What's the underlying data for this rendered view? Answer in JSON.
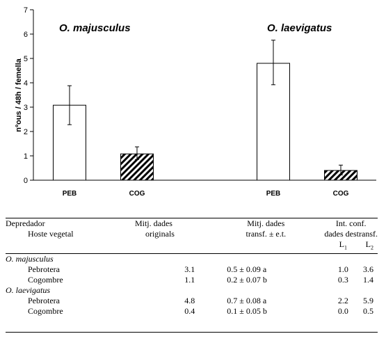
{
  "chart_data": {
    "type": "bar",
    "ylabel": "nºous / 48h / femella",
    "ylim": [
      0,
      7
    ],
    "yticks": [
      0,
      1,
      2,
      3,
      4,
      5,
      6,
      7
    ],
    "groups": [
      {
        "title": "O. majusculus",
        "bars": [
          {
            "category": "PEB",
            "value": 3.08,
            "err_low": 2.28,
            "err_high": 3.88,
            "pattern": "white"
          },
          {
            "category": "COG",
            "value": 1.08,
            "err_low": 0.85,
            "err_high": 1.37,
            "pattern": "hatched"
          }
        ]
      },
      {
        "title": "O. laevigatus",
        "bars": [
          {
            "category": "PEB",
            "value": 4.8,
            "err_low": 3.92,
            "err_high": 5.75,
            "pattern": "white"
          },
          {
            "category": "COG",
            "value": 0.4,
            "err_low": 0.22,
            "err_high": 0.62,
            "pattern": "hatched"
          }
        ]
      }
    ]
  },
  "table": {
    "header": {
      "col1_line1": "Depredador",
      "col1_line2": "Hoste vegetal",
      "col2_line1": "Mitj. dades",
      "col2_line2": "originals",
      "col3_line1": "Mitj. dades",
      "col3_line2": "transf. ± e.t.",
      "col4_line1": "Int. conf.",
      "col4_line2": "dades destransf.",
      "l1_base": "L",
      "l1_sub": "1",
      "l2_base": "L",
      "l2_sub": "2"
    },
    "groups": [
      {
        "species": "O. majusculus",
        "rows": [
          {
            "host": "Pebrotera",
            "orig": "3.1",
            "trans": "0.5 ± 0.09 a",
            "l1": "1.0",
            "l2": "3.6"
          },
          {
            "host": "Cogombre",
            "orig": "1.1",
            "trans": "0.2 ± 0.07 b",
            "l1": "0.3",
            "l2": "1.4"
          }
        ]
      },
      {
        "species": "O. laevigatus",
        "rows": [
          {
            "host": "Pebrotera",
            "orig": "4.8",
            "trans": "0.7 ± 0.08 a",
            "l1": "2.2",
            "l2": "5.9"
          },
          {
            "host": "Cogombre",
            "orig": "0.4",
            "trans": "0.1 ± 0.05 b",
            "l1": "0.0",
            "l2": "0.5"
          }
        ]
      }
    ]
  }
}
